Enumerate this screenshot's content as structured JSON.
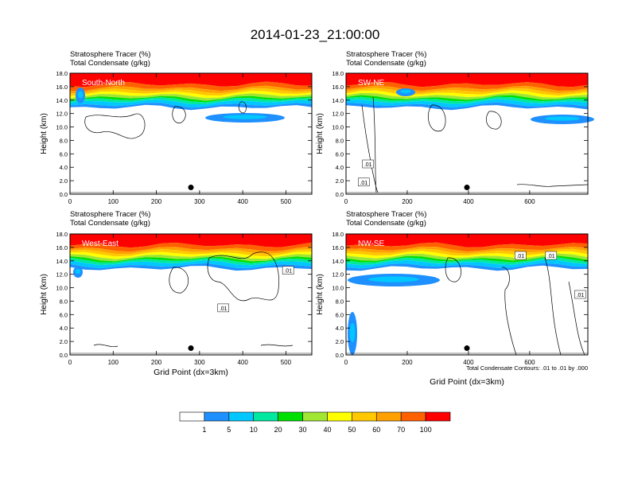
{
  "figure": {
    "title": "2014-01-23_21:00:00",
    "panel_titles": {
      "line1": "Stratosphere Tracer   (%)",
      "line2": "Total Condensate   (g/kg)"
    },
    "y_axis_label": "Height (km)",
    "x_axis_label": "Grid Point (dx=3km)",
    "contour_note": "Total Condensate Contours: .01 to .01 by .000",
    "y_ticks": [
      "0.0",
      "2.0",
      "4.0",
      "6.0",
      "8.0",
      "10.0",
      "12.0",
      "14.0",
      "16.0",
      "18.0"
    ],
    "colorbar": {
      "labels": [
        "1",
        "5",
        "10",
        "20",
        "30",
        "40",
        "50",
        "60",
        "70",
        "100"
      ],
      "colors": [
        "#ffffff",
        "#1e90ff",
        "#00c8ff",
        "#00e8a0",
        "#00e000",
        "#a0e632",
        "#ffff00",
        "#ffc800",
        "#ffa000",
        "#ff6000",
        "#ff0000"
      ]
    }
  },
  "chart_data": [
    {
      "type": "heatmap",
      "name": "South-North",
      "xlim": [
        0,
        560
      ],
      "ylim": [
        0,
        18
      ],
      "x_ticks": [
        "0",
        "100",
        "200",
        "300",
        "400",
        "500"
      ],
      "x_tick_values": [
        0,
        100,
        200,
        300,
        400,
        500
      ],
      "marker": {
        "x": 280,
        "y": 1.0
      },
      "contour_labels": []
    },
    {
      "type": "heatmap",
      "name": "SW-NE",
      "xlim": [
        0,
        790
      ],
      "ylim": [
        0,
        18
      ],
      "x_ticks": [
        "0",
        "200",
        "400",
        "600"
      ],
      "x_tick_values": [
        0,
        200,
        400,
        600
      ],
      "marker": {
        "x": 395,
        "y": 1.0
      },
      "contour_labels": [
        {
          "text": ".01",
          "x": 72,
          "y": 4.5
        },
        {
          "text": ".01",
          "x": 58,
          "y": 1.8
        }
      ]
    },
    {
      "type": "heatmap",
      "name": "West-East",
      "xlim": [
        0,
        560
      ],
      "ylim": [
        0,
        18
      ],
      "x_ticks": [
        "0",
        "100",
        "200",
        "300",
        "400",
        "500"
      ],
      "x_tick_values": [
        0,
        100,
        200,
        300,
        400,
        500
      ],
      "marker": {
        "x": 280,
        "y": 1.0
      },
      "contour_labels": [
        {
          "text": ".01",
          "x": 505,
          "y": 12.6
        },
        {
          "text": ".01",
          "x": 355,
          "y": 7.0
        }
      ]
    },
    {
      "type": "heatmap",
      "name": "NW-SE",
      "xlim": [
        0,
        790
      ],
      "ylim": [
        0,
        18
      ],
      "x_ticks": [
        "0",
        "200",
        "400",
        "600"
      ],
      "x_tick_values": [
        0,
        200,
        400,
        600
      ],
      "marker": {
        "x": 395,
        "y": 1.0
      },
      "contour_labels": [
        {
          "text": ".01",
          "x": 570,
          "y": 14.8
        },
        {
          "text": ".01",
          "x": 670,
          "y": 14.8
        },
        {
          "text": ".01",
          "x": 765,
          "y": 9.0
        }
      ]
    }
  ]
}
